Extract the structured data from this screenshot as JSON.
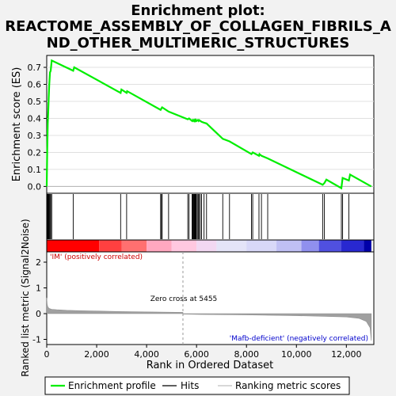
{
  "chart_data": {
    "type": "line",
    "title_lines": [
      "Enrichment plot:",
      "REACTOME_ASSEMBLY_OF_COLLAGEN_FIBRILS_A",
      "ND_OTHER_MULTIMERIC_STRUCTURES"
    ],
    "es_panel": {
      "ylabel": "Enrichment score (ES)",
      "ylim": [
        -0.04,
        0.77
      ],
      "yticks": [
        "0.0",
        "0.1",
        "0.2",
        "0.3",
        "0.4",
        "0.5",
        "0.6",
        "0.7"
      ],
      "ytick_values": [
        0.0,
        0.1,
        0.2,
        0.3,
        0.4,
        0.5,
        0.6,
        0.7
      ],
      "series": [
        {
          "name": "Enrichment profile",
          "color": "#00ee00",
          "x": [
            0,
            20,
            40,
            60,
            80,
            100,
            130,
            160,
            200,
            1060,
            1100,
            2960,
            2990,
            3200,
            3220,
            4560,
            4600,
            4620,
            4880,
            5650,
            5700,
            5820,
            5850,
            5870,
            5900,
            5920,
            5940,
            5960,
            5980,
            6000,
            6050,
            6080,
            6100,
            6150,
            6200,
            6300,
            6400,
            7050,
            7320,
            8200,
            8250,
            8500,
            8520,
            8600,
            8850,
            11050,
            11120,
            11200,
            11800,
            11850,
            12100,
            12150,
            13000
          ],
          "y": [
            0.0,
            0.2,
            0.37,
            0.44,
            0.52,
            0.6,
            0.67,
            0.68,
            0.74,
            0.68,
            0.7,
            0.55,
            0.57,
            0.55,
            0.56,
            0.45,
            0.46,
            0.465,
            0.44,
            0.395,
            0.4,
            0.385,
            0.39,
            0.385,
            0.39,
            0.385,
            0.39,
            0.385,
            0.39,
            0.385,
            0.39,
            0.385,
            0.39,
            0.385,
            0.38,
            0.375,
            0.37,
            0.28,
            0.265,
            0.19,
            0.2,
            0.18,
            0.19,
            0.18,
            0.165,
            0.01,
            0.02,
            0.04,
            -0.01,
            0.05,
            0.035,
            0.07,
            0.0
          ]
        }
      ]
    },
    "hits": [
      20,
      40,
      60,
      80,
      100,
      130,
      160,
      200,
      1060,
      2960,
      3200,
      4560,
      4600,
      4620,
      4880,
      5650,
      5700,
      5820,
      5850,
      5870,
      5900,
      5920,
      5940,
      5960,
      5980,
      6000,
      6050,
      6080,
      6100,
      6150,
      6200,
      6300,
      6400,
      7050,
      7320,
      8200,
      8250,
      8500,
      8600,
      8850,
      11050,
      11120,
      11800,
      11850,
      12100
    ],
    "color_bar": [
      {
        "from": 0,
        "to": 2100,
        "color": "#ff0000"
      },
      {
        "from": 2100,
        "to": 3000,
        "color": "#ff4040"
      },
      {
        "from": 3000,
        "to": 4000,
        "color": "#ff7070"
      },
      {
        "from": 4000,
        "to": 5000,
        "color": "#ffa8c0"
      },
      {
        "from": 5000,
        "to": 6000,
        "color": "#ffc8e0"
      },
      {
        "from": 6000,
        "to": 6800,
        "color": "#f2d8f2"
      },
      {
        "from": 6800,
        "to": 8000,
        "color": "#e4e4f8"
      },
      {
        "from": 8000,
        "to": 9200,
        "color": "#d8d8f8"
      },
      {
        "from": 9200,
        "to": 10200,
        "color": "#c0c0f4"
      },
      {
        "from": 10200,
        "to": 10900,
        "color": "#9090ee"
      },
      {
        "from": 10900,
        "to": 11800,
        "color": "#5050e0"
      },
      {
        "from": 11800,
        "to": 12700,
        "color": "#2828d0"
      },
      {
        "from": 12700,
        "to": 13000,
        "color": "#0000a8"
      }
    ],
    "metric_panel": {
      "ylabel": "Ranked list metric (Signal2Noise)",
      "ylim": [
        -1.2,
        2.4
      ],
      "yticks": [
        "-1",
        "0",
        "1",
        "2"
      ],
      "ytick_values": [
        -1,
        0,
        1,
        2
      ],
      "profile_x": [
        0,
        20,
        50,
        100,
        200,
        400,
        800,
        1500,
        3000,
        5455,
        5456,
        6000,
        8000,
        10000,
        11000,
        12000,
        12500,
        12800,
        12950,
        13000
      ],
      "profile_y": [
        0.62,
        0.35,
        0.25,
        0.2,
        0.17,
        0.15,
        0.13,
        0.11,
        0.08,
        0.05,
        -0.02,
        -0.03,
        -0.05,
        -0.08,
        -0.1,
        -0.13,
        -0.18,
        -0.3,
        -0.55,
        -1.05
      ],
      "zero_cross": 5455
    },
    "xlabel": "Rank in Ordered Dataset",
    "xlim": [
      0,
      13100
    ],
    "xticks": [
      "0",
      "2,000",
      "4,000",
      "6,000",
      "8,000",
      "10,000",
      "12,000"
    ],
    "xtick_values": [
      0,
      2000,
      4000,
      6000,
      8000,
      10000,
      12000
    ],
    "annotations": {
      "pos_label": "'IM' (positively correlated)",
      "neg_label": "'Mafb-deficient' (negatively correlated)",
      "zero_label": "Zero cross at 5455",
      "pos_color": "#cc0000",
      "neg_color": "#0000cc"
    },
    "legend": [
      {
        "label": "Enrichment profile",
        "color": "#00ee00"
      },
      {
        "label": "Hits",
        "color": "#000000"
      },
      {
        "label": "Ranking metric scores",
        "color": "#c0c0c0"
      }
    ]
  }
}
